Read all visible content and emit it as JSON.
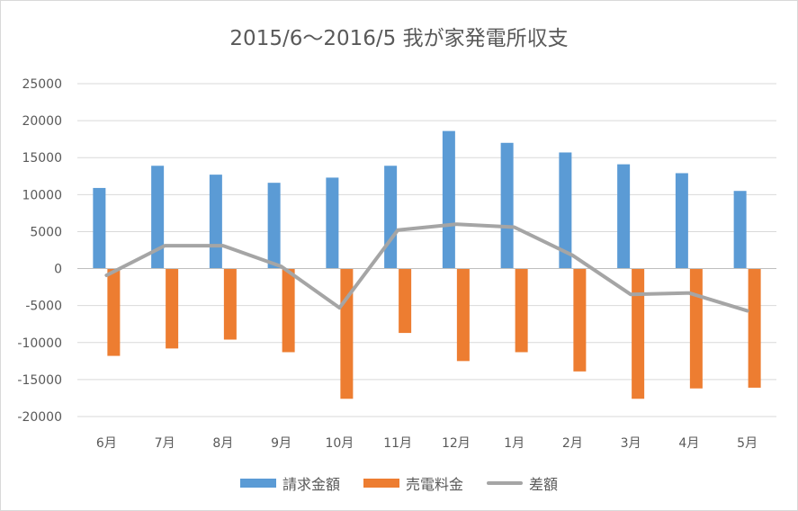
{
  "chart_data": {
    "type": "bar",
    "title": "2015/6～2016/5 我が家発電所収支",
    "categories": [
      "6月",
      "7月",
      "8月",
      "9月",
      "10月",
      "11月",
      "12月",
      "1月",
      "2月",
      "3月",
      "4月",
      "5月"
    ],
    "series": [
      {
        "name": "請求金額",
        "type": "bar",
        "color": "#5b9bd5",
        "values": [
          10900,
          13900,
          12700,
          11600,
          12300,
          13900,
          18600,
          17000,
          15700,
          14100,
          12900,
          10500
        ]
      },
      {
        "name": "売電料金",
        "type": "bar",
        "color": "#ed7d31",
        "values": [
          -11800,
          -10800,
          -9600,
          -11300,
          -17600,
          -8700,
          -12500,
          -11300,
          -13900,
          -17600,
          -16200,
          -16100
        ]
      },
      {
        "name": "差額",
        "type": "line",
        "color": "#a5a5a5",
        "values": [
          -900,
          3100,
          3100,
          300,
          -5300,
          5200,
          6000,
          5600,
          1800,
          -3500,
          -3300,
          -5700
        ]
      }
    ],
    "ylim": [
      -20000,
      25000
    ],
    "yticks": [
      25000,
      20000,
      15000,
      10000,
      5000,
      0,
      -5000,
      -10000,
      -15000,
      -20000
    ],
    "grid": true,
    "legend_position": "bottom",
    "xlabel": "",
    "ylabel": ""
  }
}
